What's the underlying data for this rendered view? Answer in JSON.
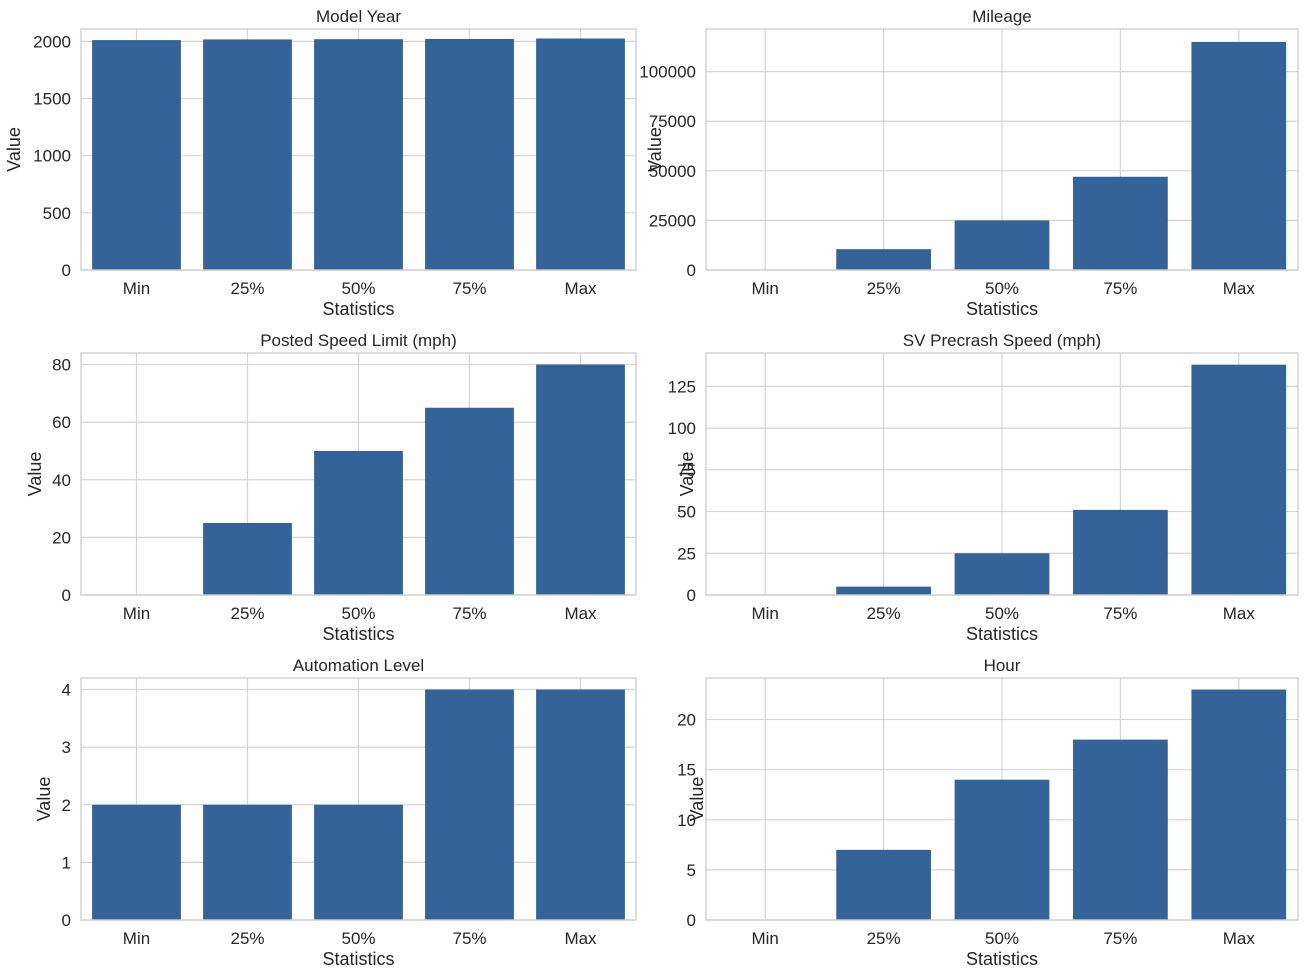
{
  "figure": {
    "bar_color": "#336398",
    "grid_color": "#d4d4d4",
    "background": "#ffffff"
  },
  "chart_data": [
    {
      "type": "bar",
      "title": "Model Year",
      "xlabel": "Statistics",
      "ylabel": "Value",
      "categories": [
        "Min",
        "25%",
        "50%",
        "75%",
        "Max"
      ],
      "values": [
        2011,
        2017,
        2019,
        2021,
        2025
      ],
      "ylim": [
        0,
        2108
      ],
      "yticks": [
        0,
        500,
        1000,
        1500,
        2000
      ],
      "grid": true
    },
    {
      "type": "bar",
      "title": "Mileage",
      "xlabel": "Statistics",
      "ylabel": "Value",
      "categories": [
        "Min",
        "25%",
        "50%",
        "75%",
        "Max"
      ],
      "values": [
        0,
        10500,
        25000,
        47000,
        115000
      ],
      "ylim": [
        0,
        121500
      ],
      "yticks": [
        0,
        25000,
        50000,
        75000,
        100000
      ],
      "grid": true
    },
    {
      "type": "bar",
      "title": "Posted Speed Limit (mph)",
      "xlabel": "Statistics",
      "ylabel": "Value",
      "categories": [
        "Min",
        "25%",
        "50%",
        "75%",
        "Max"
      ],
      "values": [
        0,
        25,
        50,
        65,
        80
      ],
      "ylim": [
        0,
        84
      ],
      "yticks": [
        0,
        20,
        40,
        60,
        80
      ],
      "grid": true
    },
    {
      "type": "bar",
      "title": "SV Precrash Speed (mph)",
      "xlabel": "Statistics",
      "ylabel": "Value",
      "categories": [
        "Min",
        "25%",
        "50%",
        "75%",
        "Max"
      ],
      "values": [
        0,
        5,
        25,
        51,
        138
      ],
      "ylim": [
        0,
        145
      ],
      "yticks": [
        0,
        25,
        50,
        75,
        100,
        125
      ],
      "grid": true
    },
    {
      "type": "bar",
      "title": "Automation Level",
      "xlabel": "Statistics",
      "ylabel": "Value",
      "categories": [
        "Min",
        "25%",
        "50%",
        "75%",
        "Max"
      ],
      "values": [
        2,
        2,
        2,
        4,
        4
      ],
      "ylim": [
        0,
        4.2
      ],
      "yticks": [
        0,
        1,
        2,
        3,
        4
      ],
      "grid": true
    },
    {
      "type": "bar",
      "title": "Hour",
      "xlabel": "Statistics",
      "ylabel": "Value",
      "categories": [
        "Min",
        "25%",
        "50%",
        "75%",
        "Max"
      ],
      "values": [
        0,
        7,
        14,
        18,
        23
      ],
      "ylim": [
        0,
        24.15
      ],
      "yticks": [
        0,
        5,
        10,
        15,
        20
      ],
      "grid": true
    }
  ]
}
